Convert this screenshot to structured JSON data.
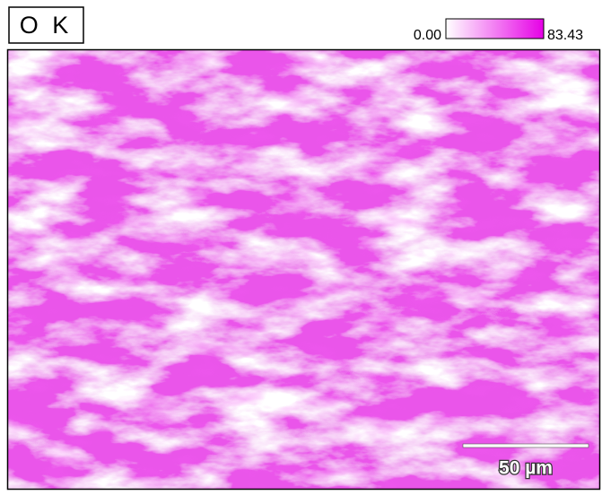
{
  "map": {
    "element_label": "O K",
    "colorbar": {
      "min_label": "0.00",
      "max_label": "83.43"
    },
    "scale_bar": {
      "label": "50 µm"
    }
  }
}
